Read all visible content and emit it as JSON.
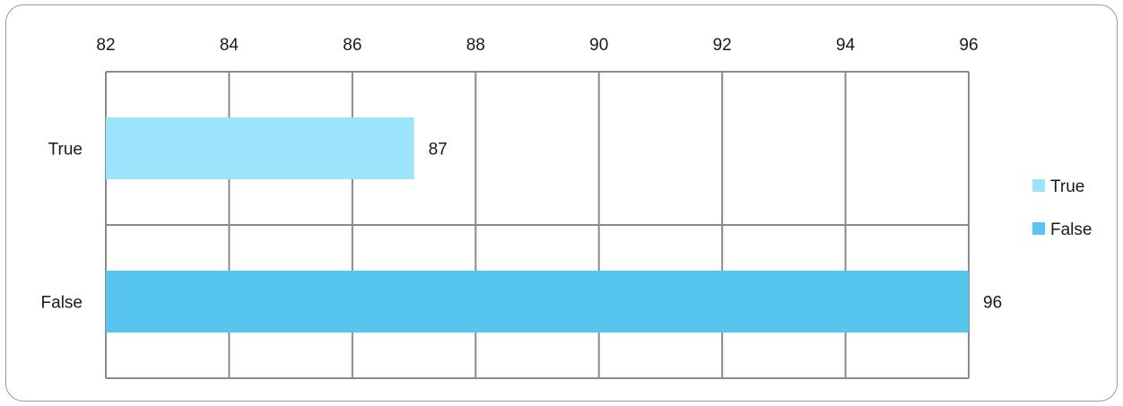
{
  "chart_data": {
    "type": "bar",
    "orientation": "horizontal",
    "categories": [
      "True",
      "False"
    ],
    "values": [
      87,
      96
    ],
    "data_labels": [
      "87",
      "96"
    ],
    "colors": [
      "#9be4fb",
      "#56c6ee"
    ],
    "xlim": [
      82,
      96
    ],
    "x_ticks": [
      "82",
      "84",
      "86",
      "88",
      "90",
      "92",
      "94",
      "96"
    ],
    "x_axis_position": "top",
    "grid": true,
    "legend": {
      "position": "right",
      "items": [
        {
          "label": "True",
          "color": "#9be4fb"
        },
        {
          "label": "False",
          "color": "#56c6ee"
        }
      ]
    }
  }
}
